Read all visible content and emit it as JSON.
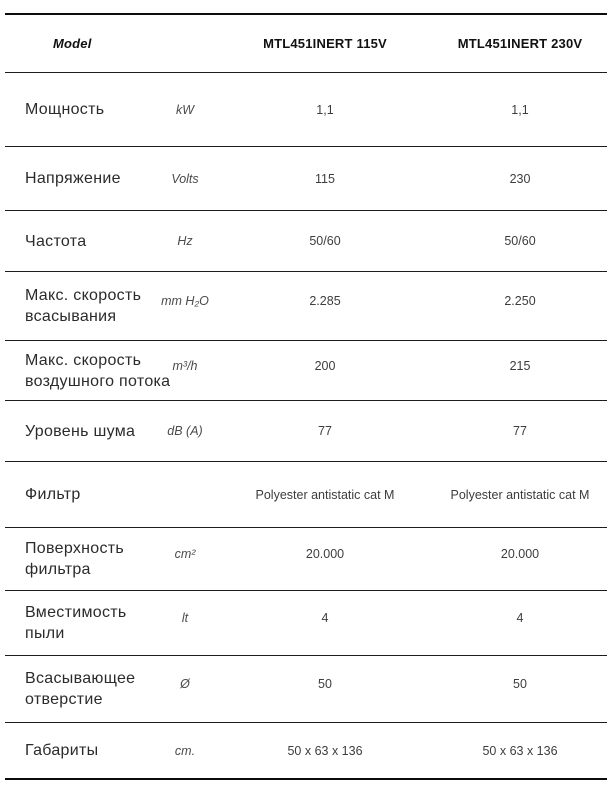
{
  "colors": {
    "rule_thick": "#0c0c0c",
    "rule_thin": "#1c1c1c",
    "label_text": "#2b2b2b",
    "value_text": "#3d3d3d",
    "unit_text": "#4a4a4a"
  },
  "table": {
    "header": {
      "model": "Model",
      "variant_115": "MTL451INERT 115V",
      "variant_230": "MTL451INERT 230V"
    },
    "rows": [
      {
        "label_lines": [
          "Мощность"
        ],
        "unit": "kW",
        "values": [
          "1,1",
          "1,1"
        ]
      },
      {
        "label_lines": [
          "Напряжение"
        ],
        "unit": "Volts",
        "values": [
          "115",
          "230"
        ]
      },
      {
        "label_lines": [
          "Частота"
        ],
        "unit": "Hz",
        "values": [
          "50/60",
          "50/60"
        ]
      },
      {
        "label_lines": [
          "Макс. скорость",
          "всасывания"
        ],
        "unit": "mm H₂O",
        "values": [
          "2.285",
          "2.250"
        ]
      },
      {
        "label_lines": [
          "Макс. скорость",
          "воздушного потока"
        ],
        "unit": "m³/h",
        "values": [
          "200",
          "215"
        ]
      },
      {
        "label_lines": [
          "Уровень шума"
        ],
        "unit": "dB (A)",
        "values": [
          "77",
          "77"
        ]
      },
      {
        "label_lines": [
          "Фильтр"
        ],
        "unit": "",
        "values": [
          "Polyester antistatic cat M",
          "Polyester antistatic cat M"
        ]
      },
      {
        "label_lines": [
          "Поверхность",
          "фильтра"
        ],
        "unit": "cm²",
        "values": [
          "20.000",
          "20.000"
        ]
      },
      {
        "label_lines": [
          "Вместимость",
          "пыли"
        ],
        "unit": "lt",
        "values": [
          "4",
          "4"
        ]
      },
      {
        "label_lines": [
          "Всасывающее",
          "отверстие"
        ],
        "unit": "Ø",
        "values": [
          "50",
          "50"
        ]
      },
      {
        "label_lines": [
          "Габариты"
        ],
        "unit": "cm.",
        "values": [
          "50 x 63 x 136",
          "50 x 63 x 136"
        ]
      }
    ]
  }
}
